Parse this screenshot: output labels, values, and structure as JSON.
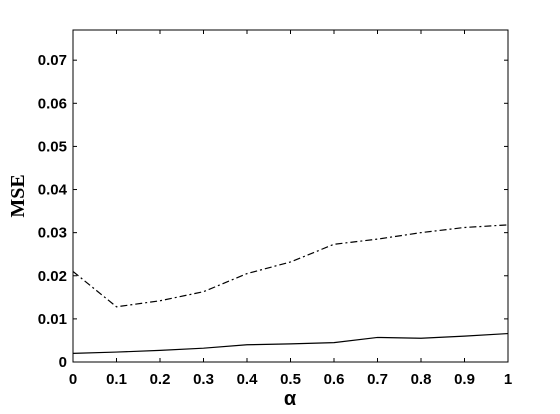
{
  "chart_data": {
    "type": "line",
    "x_label": "α",
    "y_label": "MSE",
    "x": [
      0,
      0.1,
      0.2,
      0.3,
      0.4,
      0.5,
      0.6,
      0.7,
      0.8,
      0.9,
      1
    ],
    "series": [
      {
        "color": "#000000",
        "dash": "7,3,2,3",
        "values": [
          0.021,
          0.0128,
          0.0142,
          0.0163,
          0.0205,
          0.0232,
          0.0273,
          0.0285,
          0.03,
          0.0312,
          0.0318
        ]
      },
      {
        "color": "#000000",
        "dash": "none",
        "values": [
          0.002,
          0.0023,
          0.0027,
          0.0032,
          0.004,
          0.0042,
          0.0045,
          0.0057,
          0.0055,
          0.006,
          0.0066
        ]
      }
    ],
    "xlim": [
      0,
      1
    ],
    "xticks": [
      0,
      0.1,
      0.2,
      0.3,
      0.4,
      0.5,
      0.6,
      0.7,
      0.8,
      0.9,
      1
    ],
    "ylim": [
      0,
      0.077
    ],
    "yticks": [
      0,
      0.01,
      0.02,
      0.03,
      0.04,
      0.05,
      0.06,
      0.07
    ],
    "grid": false
  }
}
